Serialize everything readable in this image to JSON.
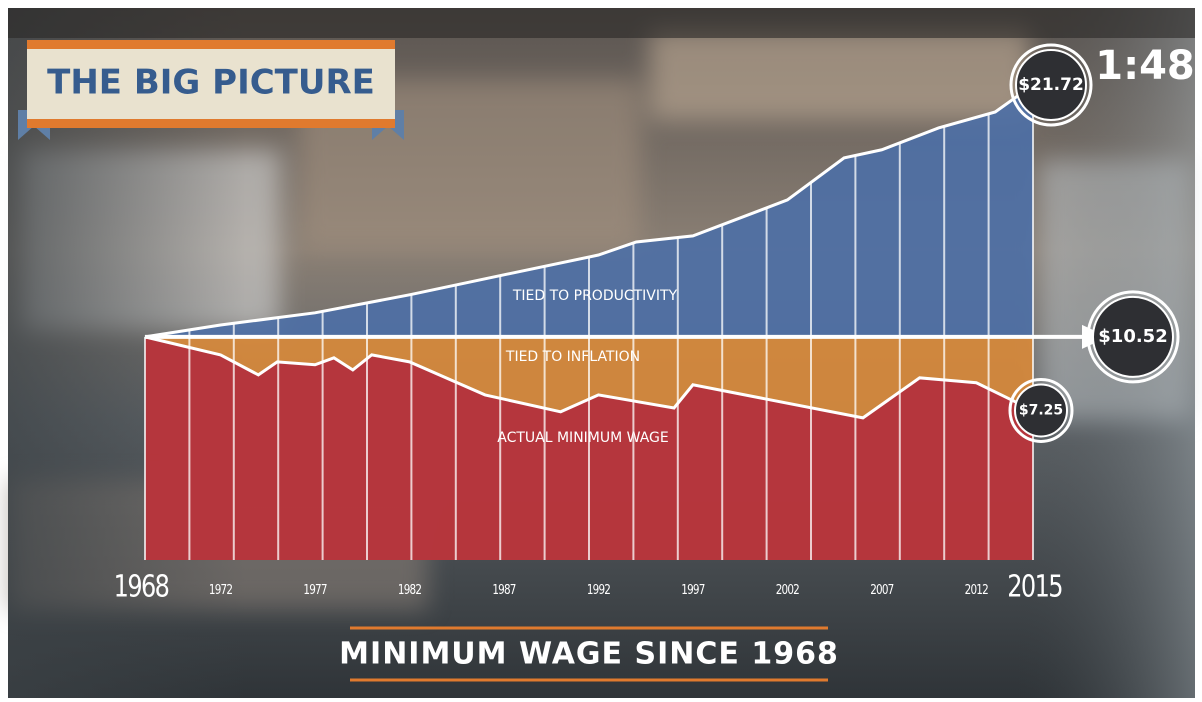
{
  "banner": "THE BIG PICTURE",
  "timer": "1:48",
  "chart_data": {
    "type": "area",
    "title": "MINIMUM WAGE SINCE 1968",
    "xlim": [
      1968,
      2015
    ],
    "ylim": [
      0.6,
      21.72
    ],
    "xticks": [
      1968,
      1972,
      1977,
      1982,
      1987,
      1992,
      1997,
      2002,
      2007,
      2012,
      2015
    ],
    "series": [
      {
        "name": "TIED TO PRODUCTIVITY",
        "color": "#4d6fa6",
        "x": [
          1968,
          1972,
          1977,
          1982,
          1987,
          1992,
          1994,
          1997,
          2002,
          2005,
          2007,
          2010,
          2013,
          2015
        ],
        "values": [
          10.52,
          11.05,
          11.59,
          12.39,
          13.28,
          14.16,
          14.74,
          15.01,
          16.61,
          18.48,
          18.84,
          19.81,
          20.52,
          21.72
        ],
        "value_labels": [
          null,
          null,
          null,
          null,
          null,
          null,
          null,
          null,
          null,
          null,
          null,
          null,
          null,
          "$21.72"
        ]
      },
      {
        "name": "TIED TO INFLATION",
        "color": "#d9893a",
        "x": [
          1968,
          2015
        ],
        "values": [
          10.52,
          10.52
        ],
        "value_labels": [
          null,
          "$10.52"
        ]
      },
      {
        "name": "ACTUAL MINIMUM WAGE",
        "color": "#b3303d",
        "x": [
          1968,
          1972,
          1974,
          1975,
          1977,
          1978,
          1979,
          1980,
          1982,
          1986,
          1990,
          1992,
          1996,
          1997,
          2006,
          2009,
          2012,
          2015
        ],
        "values": [
          10.52,
          9.72,
          8.83,
          9.41,
          9.28,
          9.59,
          9.05,
          9.72,
          9.41,
          7.94,
          7.19,
          7.94,
          7.36,
          8.39,
          6.92,
          8.7,
          8.48,
          7.25
        ],
        "value_labels": [
          null,
          null,
          null,
          null,
          null,
          null,
          null,
          null,
          null,
          null,
          null,
          null,
          null,
          null,
          null,
          null,
          null,
          "$7.25"
        ]
      }
    ]
  }
}
